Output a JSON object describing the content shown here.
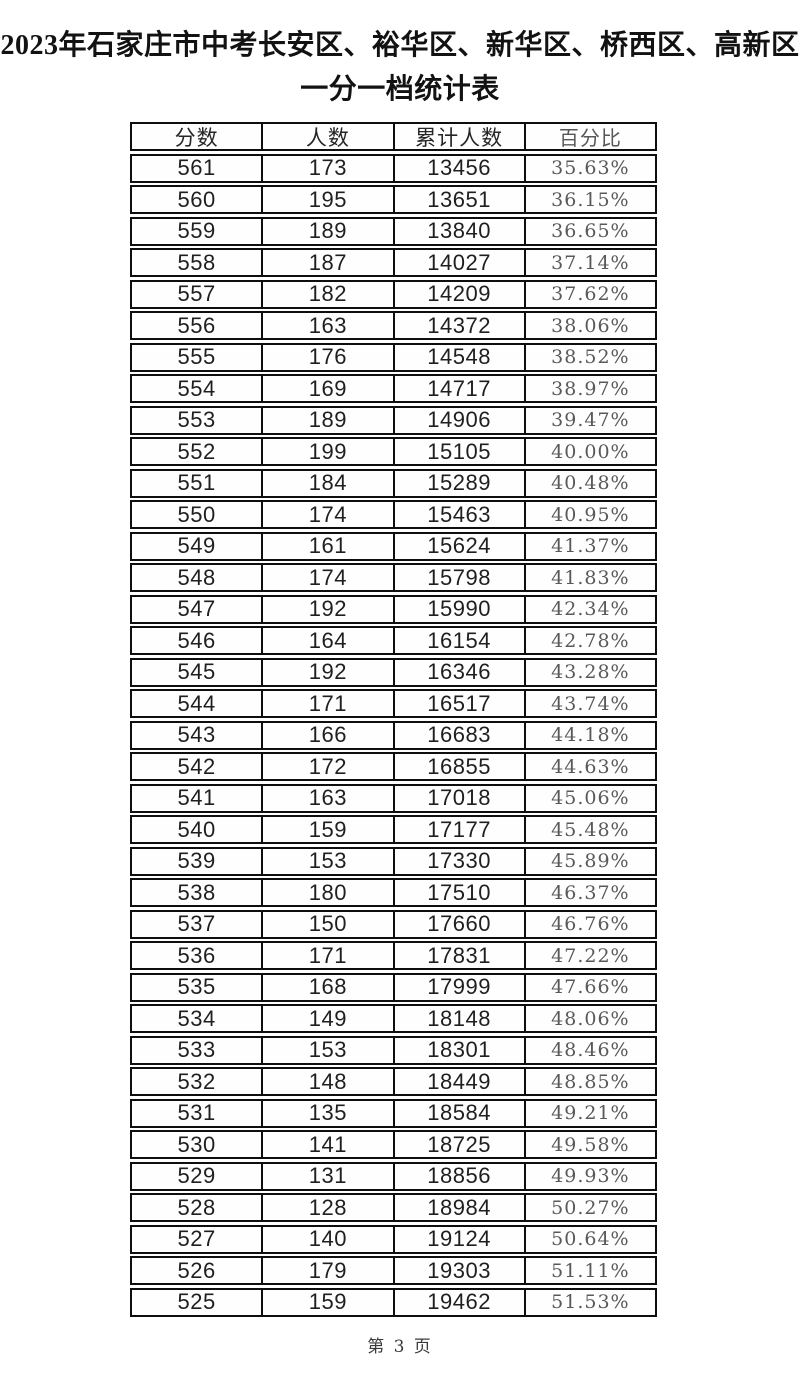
{
  "title": {
    "line1": "2023年石家庄市中考长安区、裕华区、新华区、桥西区、高新区",
    "line2": "一分一档统计表"
  },
  "table": {
    "columns": [
      "分数",
      "人数",
      "累计人数",
      "百分比"
    ],
    "rows": [
      [
        "561",
        "173",
        "13456",
        "35.63%"
      ],
      [
        "560",
        "195",
        "13651",
        "36.15%"
      ],
      [
        "559",
        "189",
        "13840",
        "36.65%"
      ],
      [
        "558",
        "187",
        "14027",
        "37.14%"
      ],
      [
        "557",
        "182",
        "14209",
        "37.62%"
      ],
      [
        "556",
        "163",
        "14372",
        "38.06%"
      ],
      [
        "555",
        "176",
        "14548",
        "38.52%"
      ],
      [
        "554",
        "169",
        "14717",
        "38.97%"
      ],
      [
        "553",
        "189",
        "14906",
        "39.47%"
      ],
      [
        "552",
        "199",
        "15105",
        "40.00%"
      ],
      [
        "551",
        "184",
        "15289",
        "40.48%"
      ],
      [
        "550",
        "174",
        "15463",
        "40.95%"
      ],
      [
        "549",
        "161",
        "15624",
        "41.37%"
      ],
      [
        "548",
        "174",
        "15798",
        "41.83%"
      ],
      [
        "547",
        "192",
        "15990",
        "42.34%"
      ],
      [
        "546",
        "164",
        "16154",
        "42.78%"
      ],
      [
        "545",
        "192",
        "16346",
        "43.28%"
      ],
      [
        "544",
        "171",
        "16517",
        "43.74%"
      ],
      [
        "543",
        "166",
        "16683",
        "44.18%"
      ],
      [
        "542",
        "172",
        "16855",
        "44.63%"
      ],
      [
        "541",
        "163",
        "17018",
        "45.06%"
      ],
      [
        "540",
        "159",
        "17177",
        "45.48%"
      ],
      [
        "539",
        "153",
        "17330",
        "45.89%"
      ],
      [
        "538",
        "180",
        "17510",
        "46.37%"
      ],
      [
        "537",
        "150",
        "17660",
        "46.76%"
      ],
      [
        "536",
        "171",
        "17831",
        "47.22%"
      ],
      [
        "535",
        "168",
        "17999",
        "47.66%"
      ],
      [
        "534",
        "149",
        "18148",
        "48.06%"
      ],
      [
        "533",
        "153",
        "18301",
        "48.46%"
      ],
      [
        "532",
        "148",
        "18449",
        "48.85%"
      ],
      [
        "531",
        "135",
        "18584",
        "49.21%"
      ],
      [
        "530",
        "141",
        "18725",
        "49.58%"
      ],
      [
        "529",
        "131",
        "18856",
        "49.93%"
      ],
      [
        "528",
        "128",
        "18984",
        "50.27%"
      ],
      [
        "527",
        "140",
        "19124",
        "50.64%"
      ],
      [
        "526",
        "179",
        "19303",
        "51.11%"
      ],
      [
        "525",
        "159",
        "19462",
        "51.53%"
      ]
    ]
  },
  "footer": {
    "page_label": "第 3 页"
  },
  "colors": {
    "border": "#0e0e0e",
    "number_text": "#1f1f1f",
    "percent_text": "#595959",
    "background": "#ffffff"
  }
}
